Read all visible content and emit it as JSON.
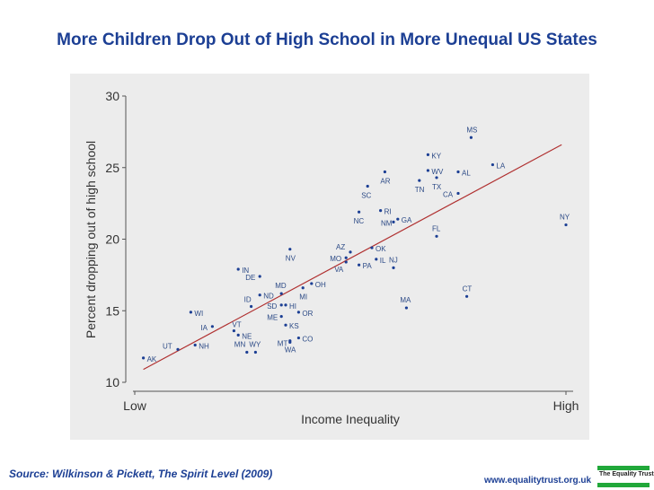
{
  "title": "More Children Drop Out of High School in More Unequal US States",
  "source": "Source: Wilkinson & Pickett, The Spirit Level (2009)",
  "website": "www.equalitytrust.org.uk",
  "logo_text": "The Equality Trust",
  "colors": {
    "title": "#1c3f94",
    "fit_line": "#b03030",
    "points": "#1c3f94",
    "labels": "#2c4a86",
    "panel": "#ececec"
  },
  "chart_data": {
    "type": "scatter",
    "title": "More Children Drop Out of High School in More Unequal US States",
    "xlabel": "Income Inequality",
    "ylabel": "Percent dropping out of high school",
    "x_tick_labels": [
      "Low",
      "High"
    ],
    "xlim": [
      0,
      100
    ],
    "ylim": [
      10,
      30
    ],
    "y_ticks": [
      10,
      15,
      20,
      25,
      30
    ],
    "grid": false,
    "fit_line": {
      "x": [
        2,
        99
      ],
      "y": [
        10.9,
        26.6
      ]
    },
    "points": [
      {
        "label": "AK",
        "x": 2,
        "y": 11.7
      },
      {
        "label": "UT",
        "x": 10,
        "y": 12.3
      },
      {
        "label": "NH",
        "x": 14,
        "y": 12.6
      },
      {
        "label": "WI",
        "x": 13,
        "y": 14.9
      },
      {
        "label": "IA",
        "x": 18,
        "y": 13.9
      },
      {
        "label": "VT",
        "x": 23,
        "y": 13.6
      },
      {
        "label": "NE",
        "x": 24,
        "y": 13.3
      },
      {
        "label": "MN",
        "x": 26,
        "y": 12.1
      },
      {
        "label": "WY",
        "x": 28,
        "y": 12.1
      },
      {
        "label": "IN",
        "x": 24,
        "y": 17.9
      },
      {
        "label": "DE",
        "x": 29,
        "y": 17.4
      },
      {
        "label": "ID",
        "x": 27,
        "y": 15.3
      },
      {
        "label": "ND",
        "x": 29,
        "y": 16.1
      },
      {
        "label": "MD",
        "x": 34,
        "y": 16.2
      },
      {
        "label": "SD",
        "x": 34,
        "y": 15.4
      },
      {
        "label": "HI",
        "x": 35,
        "y": 15.4
      },
      {
        "label": "ME",
        "x": 34,
        "y": 14.6
      },
      {
        "label": "KS",
        "x": 35,
        "y": 14.0
      },
      {
        "label": "MT",
        "x": 36,
        "y": 12.8
      },
      {
        "label": "WA",
        "x": 36,
        "y": 12.9
      },
      {
        "label": "CO",
        "x": 38,
        "y": 13.1
      },
      {
        "label": "OR",
        "x": 38,
        "y": 14.9
      },
      {
        "label": "MI",
        "x": 39,
        "y": 16.6
      },
      {
        "label": "OH",
        "x": 41,
        "y": 16.9
      },
      {
        "label": "NV",
        "x": 36,
        "y": 19.3
      },
      {
        "label": "AZ",
        "x": 50,
        "y": 19.1
      },
      {
        "label": "MO",
        "x": 49,
        "y": 18.7
      },
      {
        "label": "VA",
        "x": 49,
        "y": 18.4
      },
      {
        "label": "PA",
        "x": 52,
        "y": 18.2
      },
      {
        "label": "OK",
        "x": 55,
        "y": 19.4
      },
      {
        "label": "IL",
        "x": 56,
        "y": 18.6
      },
      {
        "label": "NJ",
        "x": 60,
        "y": 18.0
      },
      {
        "label": "NC",
        "x": 52,
        "y": 21.9
      },
      {
        "label": "RI",
        "x": 57,
        "y": 22.0
      },
      {
        "label": "NM",
        "x": 60,
        "y": 21.2
      },
      {
        "label": "GA",
        "x": 61,
        "y": 21.4
      },
      {
        "label": "SC",
        "x": 54,
        "y": 23.7
      },
      {
        "label": "AR",
        "x": 58,
        "y": 24.7
      },
      {
        "label": "TN",
        "x": 66,
        "y": 24.1
      },
      {
        "label": "KY",
        "x": 68,
        "y": 25.9
      },
      {
        "label": "WV",
        "x": 68,
        "y": 24.8
      },
      {
        "label": "TX",
        "x": 70,
        "y": 24.3
      },
      {
        "label": "AL",
        "x": 75,
        "y": 24.7
      },
      {
        "label": "CA",
        "x": 75,
        "y": 23.2
      },
      {
        "label": "MS",
        "x": 78,
        "y": 27.1
      },
      {
        "label": "LA",
        "x": 83,
        "y": 25.2
      },
      {
        "label": "FL",
        "x": 70,
        "y": 20.2
      },
      {
        "label": "MA",
        "x": 63,
        "y": 15.2
      },
      {
        "label": "CT",
        "x": 77,
        "y": 16.0
      },
      {
        "label": "NY",
        "x": 100,
        "y": 21.0
      }
    ]
  }
}
